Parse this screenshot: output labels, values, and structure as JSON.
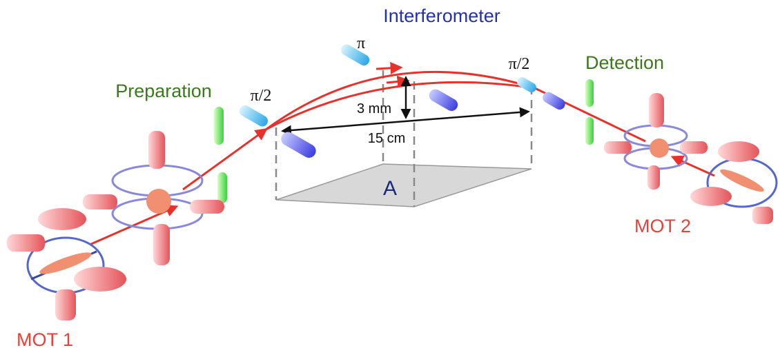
{
  "sections": [
    "Preparation",
    "Interferometer",
    "Detection"
  ],
  "traps": [
    "MOT 1",
    "MOT 2"
  ],
  "pulses": [
    "π/2",
    "π",
    "π/2"
  ],
  "dimensions": {
    "height": "3 mm",
    "length": "15 cm"
  },
  "area": "A"
}
